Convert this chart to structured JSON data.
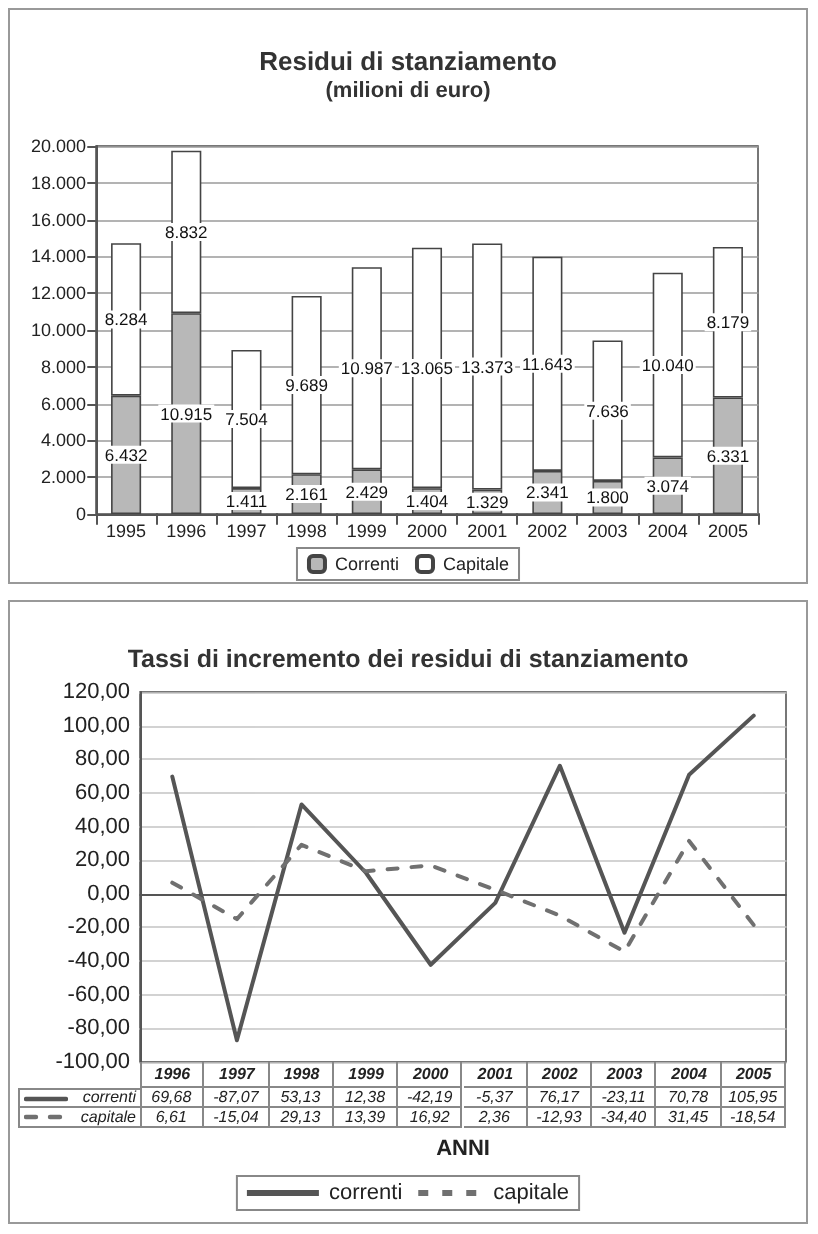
{
  "chart_data": [
    {
      "type": "bar",
      "title": "Residui di stanziamento",
      "subtitle": "(milioni di euro)",
      "categories": [
        "1995",
        "1996",
        "1997",
        "1998",
        "1999",
        "2000",
        "2001",
        "2002",
        "2003",
        "2004",
        "2005"
      ],
      "stacked": true,
      "series": [
        {
          "name": "Correnti",
          "color": "#b8b8b8",
          "values": [
            6432,
            10915,
            1411,
            2161,
            2429,
            1404,
            1329,
            2341,
            1800,
            3074,
            6331
          ],
          "value_labels": [
            "6.432",
            "10.915",
            "1.411",
            "2.161",
            "2.429",
            "1.404",
            "1.329",
            "2.341",
            "1.800",
            "3.074",
            "6.331"
          ]
        },
        {
          "name": "Capitale",
          "color": "#ffffff",
          "values": [
            8284,
            8832,
            7504,
            9689,
            10987,
            13065,
            13373,
            11643,
            7636,
            10040,
            8179
          ],
          "value_labels": [
            "8.284",
            "8.832",
            "7.504",
            "9.689",
            "10.987",
            "13.065",
            "13.373",
            "11.643",
            "7.636",
            "10.040",
            "8.179"
          ]
        }
      ],
      "ylim": [
        0,
        20000
      ],
      "yticks": [
        0,
        {
          "value": 2000,
          "label": "2.000"
        },
        {
          "value": 4000,
          "label": "4.000"
        },
        {
          "value": 6000,
          "label": "6.000"
        },
        {
          "value": 8000,
          "label": "8.000"
        },
        {
          "value": 10000,
          "label": "10.000"
        },
        {
          "value": 12000,
          "label": "12.000"
        },
        {
          "value": 14000,
          "label": "14.000"
        },
        {
          "value": 16000,
          "label": "16.000"
        },
        {
          "value": 18000,
          "label": "18.000"
        },
        {
          "value": 20000,
          "label": "20.000"
        }
      ],
      "grid": "y",
      "legend": "bottom"
    },
    {
      "type": "line",
      "title": "Tassi di incremento dei residui di stanziamento",
      "xlabel": "ANNI",
      "categories": [
        "1996",
        "1997",
        "1998",
        "1999",
        "2000",
        "2001",
        "2002",
        "2003",
        "2004",
        "2005"
      ],
      "marker": "none",
      "series": [
        {
          "name": "correnti",
          "color": "#555555",
          "line_style": "solid",
          "values": [
            69.68,
            -87.07,
            53.13,
            12.38,
            -42.19,
            -5.37,
            76.17,
            -23.11,
            70.78,
            105.95
          ],
          "value_labels": [
            "69,68",
            "-87,07",
            "53,13",
            "12,38",
            "-42,19",
            "-5,37",
            "76,17",
            "-23,11",
            "70,78",
            "105,95"
          ]
        },
        {
          "name": "capitale",
          "color": "#707070",
          "line_style": "dashed",
          "values": [
            6.61,
            -15.04,
            29.13,
            13.39,
            16.92,
            2.36,
            -12.93,
            -34.4,
            31.45,
            -18.54
          ],
          "value_labels": [
            "6,61",
            "-15,04",
            "29,13",
            "13,39",
            "16,92",
            "2,36",
            "-12,93",
            "-34,40",
            "31,45",
            "-18,54"
          ]
        }
      ],
      "ylim": [
        -100,
        120
      ],
      "yticks": [
        {
          "value": -100,
          "label": "-100,00"
        },
        {
          "value": -80,
          "label": "-80,00"
        },
        {
          "value": -60,
          "label": "-60,00"
        },
        {
          "value": -40,
          "label": "-40,00"
        },
        {
          "value": -20,
          "label": "-20,00"
        },
        {
          "value": 0,
          "label": "0,00"
        },
        {
          "value": 20,
          "label": "20,00"
        },
        {
          "value": 40,
          "label": "40,00"
        },
        {
          "value": 60,
          "label": "60,00"
        },
        {
          "value": 80,
          "label": "80,00"
        },
        {
          "value": 100,
          "label": "100,00"
        },
        {
          "value": 120,
          "label": "120,00"
        }
      ],
      "grid": "y",
      "legend": "bottom"
    }
  ]
}
